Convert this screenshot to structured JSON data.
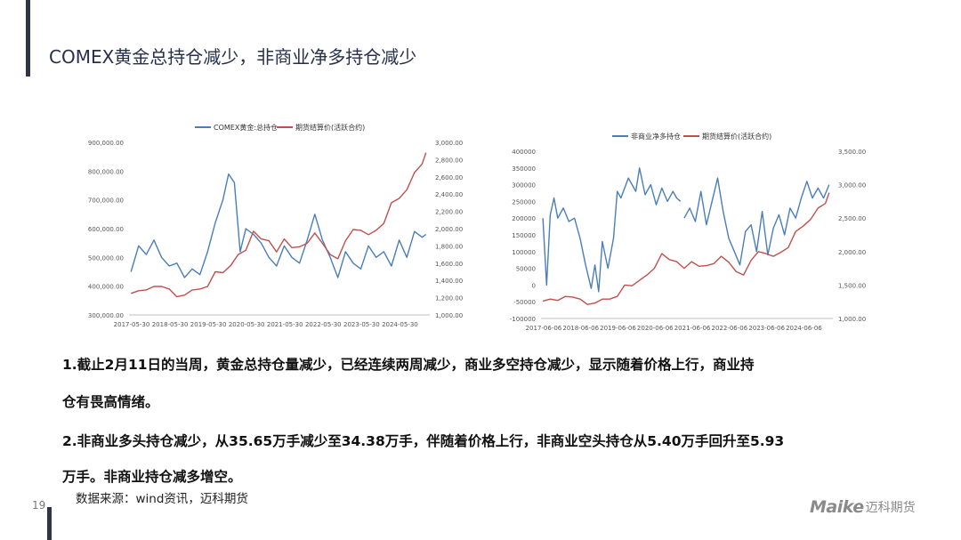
{
  "header": {
    "title": "COMEX黄金总持仓减少，非商业净多持仓减少",
    "page_number": "19"
  },
  "colors": {
    "blue": "#4a7ebb",
    "red": "#c0504d",
    "axis_text": "#555555"
  },
  "chart_data": [
    {
      "type": "line",
      "legend_position": "top",
      "grid": false,
      "x_tick_labels": [
        "2017-05-30",
        "2018-05-30",
        "2019-05-30",
        "2020-05-30",
        "2021-05-30",
        "2022-05-30",
        "2023-05-30",
        "2024-05-30"
      ],
      "y_left": {
        "ylim": [
          300000,
          900000
        ],
        "tick_labels": [
          "300,000.00",
          "400,000.00",
          "500,000.00",
          "600,000.00",
          "700,000.00",
          "800,000.00",
          "900,000.00"
        ]
      },
      "y_right": {
        "ylim": [
          1000,
          3000
        ],
        "tick_labels": [
          "1,000.00",
          "1,200.00",
          "1,400.00",
          "1,600.00",
          "1,800.00",
          "2,000.00",
          "2,200.00",
          "2,400.00",
          "2,600.00",
          "2,800.00",
          "3,000.00"
        ]
      },
      "series": [
        {
          "name": "COMEX黄金:总持仓",
          "axis": "left",
          "color": "#4a7ebb",
          "x": [
            2017.4,
            2017.6,
            2017.8,
            2018.0,
            2018.2,
            2018.4,
            2018.6,
            2018.8,
            2019.0,
            2019.2,
            2019.4,
            2019.6,
            2019.8,
            2019.95,
            2020.1,
            2020.25,
            2020.4,
            2020.6,
            2020.8,
            2021.0,
            2021.2,
            2021.4,
            2021.6,
            2021.8,
            2022.0,
            2022.2,
            2022.4,
            2022.6,
            2022.8,
            2023.0,
            2023.2,
            2023.4,
            2023.6,
            2023.8,
            2024.0,
            2024.2,
            2024.4,
            2024.6,
            2024.8,
            2025.0,
            2025.1
          ],
          "values": [
            450000,
            540000,
            510000,
            560000,
            500000,
            470000,
            480000,
            430000,
            460000,
            440000,
            520000,
            620000,
            700000,
            790000,
            760000,
            520000,
            600000,
            580000,
            550000,
            500000,
            470000,
            540000,
            500000,
            480000,
            560000,
            650000,
            560000,
            500000,
            430000,
            520000,
            480000,
            460000,
            540000,
            500000,
            520000,
            470000,
            560000,
            500000,
            590000,
            570000,
            580000
          ]
        },
        {
          "name": "期货结算价(活跃合约)",
          "axis": "right",
          "color": "#c0504d",
          "x": [
            2017.4,
            2017.6,
            2017.8,
            2018.0,
            2018.2,
            2018.4,
            2018.6,
            2018.8,
            2019.0,
            2019.2,
            2019.4,
            2019.6,
            2019.8,
            2020.0,
            2020.2,
            2020.4,
            2020.6,
            2020.8,
            2021.0,
            2021.2,
            2021.4,
            2021.6,
            2021.8,
            2022.0,
            2022.2,
            2022.4,
            2022.6,
            2022.8,
            2023.0,
            2023.2,
            2023.4,
            2023.6,
            2023.8,
            2024.0,
            2024.2,
            2024.4,
            2024.6,
            2024.8,
            2025.0,
            2025.1
          ],
          "values": [
            1250,
            1280,
            1290,
            1330,
            1330,
            1300,
            1210,
            1230,
            1290,
            1300,
            1330,
            1500,
            1490,
            1570,
            1700,
            1750,
            1970,
            1880,
            1860,
            1730,
            1880,
            1780,
            1790,
            1830,
            1950,
            1830,
            1700,
            1650,
            1860,
            1990,
            1980,
            1930,
            1980,
            2060,
            2300,
            2350,
            2450,
            2650,
            2750,
            2880
          ]
        }
      ]
    },
    {
      "type": "line",
      "legend_position": "top",
      "grid": false,
      "x_tick_labels": [
        "2017-06-06",
        "2018-06-06",
        "2019-06-06",
        "2020-06-06",
        "2021-06-06",
        "2022-06-06",
        "2023-06-06",
        "2024-06-06"
      ],
      "y_left": {
        "ylim": [
          -100000,
          400000
        ],
        "tick_labels": [
          "-100000",
          "-50000",
          "0",
          "50000",
          "100000",
          "150000",
          "200000",
          "250000",
          "300000",
          "350000",
          "400000"
        ]
      },
      "y_right": {
        "ylim": [
          1000,
          3500
        ],
        "tick_labels": [
          "1,000.00",
          "1,500.00",
          "2,000.00",
          "2,500.00",
          "3,000.00",
          "3,500.00"
        ]
      },
      "series": [
        {
          "name": "非商业净多持仓",
          "axis": "left",
          "color": "#4a7ebb",
          "segments": [
            {
              "x": [
                2017.4,
                2017.5,
                2017.6,
                2017.7,
                2017.8,
                2017.95,
                2018.1,
                2018.25,
                2018.4,
                2018.55,
                2018.7,
                2018.8,
                2018.9,
                2019.0,
                2019.15,
                2019.3,
                2019.4,
                2019.5,
                2019.7,
                2019.9,
                2020.0,
                2020.15,
                2020.3,
                2020.45,
                2020.6,
                2020.75,
                2020.9,
                2021.0,
                2021.1
              ],
              "values": [
                200000,
                0,
                210000,
                260000,
                200000,
                230000,
                190000,
                200000,
                140000,
                60000,
                -10000,
                60000,
                -20000,
                130000,
                50000,
                140000,
                280000,
                260000,
                320000,
                280000,
                350000,
                270000,
                300000,
                240000,
                290000,
                250000,
                280000,
                260000,
                250000
              ]
            },
            {
              "x": [
                2021.2,
                2021.35,
                2021.5,
                2021.65,
                2021.8,
                2021.95,
                2022.1,
                2022.25,
                2022.4,
                2022.55,
                2022.7,
                2022.85,
                2023.0,
                2023.15,
                2023.3,
                2023.45,
                2023.6,
                2023.75,
                2023.9,
                2024.05,
                2024.2,
                2024.35,
                2024.5,
                2024.65,
                2024.8,
                2024.95,
                2025.1
              ],
              "values": [
                200000,
                230000,
                190000,
                280000,
                180000,
                250000,
                320000,
                220000,
                140000,
                100000,
                60000,
                160000,
                180000,
                100000,
                220000,
                90000,
                170000,
                210000,
                150000,
                230000,
                200000,
                260000,
                310000,
                260000,
                290000,
                260000,
                300000
              ]
            }
          ]
        },
        {
          "name": "期货结算价(活跃合约)",
          "axis": "right",
          "color": "#c0504d",
          "x": [
            2017.4,
            2017.6,
            2017.8,
            2018.0,
            2018.2,
            2018.4,
            2018.6,
            2018.8,
            2019.0,
            2019.2,
            2019.4,
            2019.6,
            2019.8,
            2020.0,
            2020.2,
            2020.4,
            2020.6,
            2020.8,
            2021.0,
            2021.2,
            2021.4,
            2021.6,
            2021.8,
            2022.0,
            2022.2,
            2022.4,
            2022.6,
            2022.8,
            2023.0,
            2023.2,
            2023.4,
            2023.6,
            2023.8,
            2024.0,
            2024.2,
            2024.4,
            2024.6,
            2024.8,
            2025.0,
            2025.1
          ],
          "values": [
            1260,
            1290,
            1270,
            1330,
            1320,
            1290,
            1210,
            1230,
            1290,
            1290,
            1330,
            1500,
            1490,
            1570,
            1650,
            1750,
            1970,
            1880,
            1850,
            1750,
            1850,
            1780,
            1790,
            1820,
            1930,
            1840,
            1700,
            1650,
            1870,
            2000,
            1970,
            1930,
            1990,
            2060,
            2300,
            2380,
            2480,
            2650,
            2720,
            2880
          ]
        }
      ]
    }
  ],
  "paragraphs": [
    {
      "line1": "1.截止2月11日的当周，黄金总持仓量减少，已经连续两周减少，商业多空持仓减少，显示随着价格上行，商业持",
      "line2": "仓有畏高情绪。"
    },
    {
      "line1": "2.非商业多头持仓减少，从35.65万手减少至34.38万手，伴随着价格上行，非商业空头持仓从5.40万手回升至5.93",
      "line2": "万手。非商业持仓减多增空。"
    }
  ],
  "footer": {
    "source": "数据来源：wind资讯，迈科期货",
    "logo_en": "Maike",
    "logo_cn": "迈科期货"
  }
}
